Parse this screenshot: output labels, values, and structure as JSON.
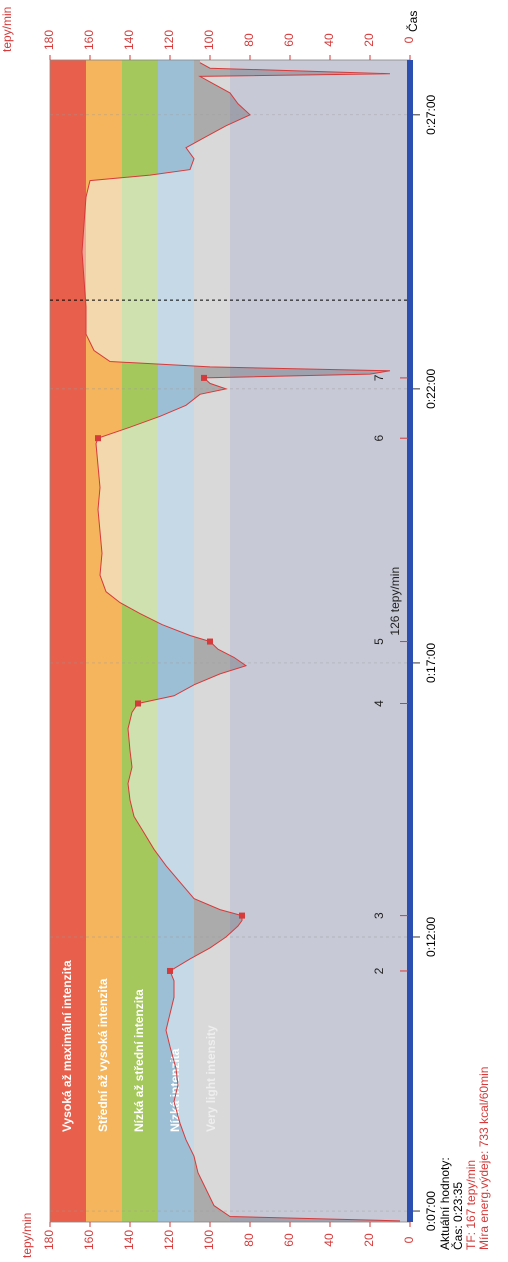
{
  "chart_data": {
    "type": "area",
    "y_label": "tepy/min",
    "x_label": "Čas",
    "xlim": [
      6.8,
      28.0
    ],
    "ylim": [
      0,
      180
    ],
    "xticks": [
      {
        "value": 7,
        "label": "0:07:00"
      },
      {
        "value": 12,
        "label": "0:12:00"
      },
      {
        "value": 17,
        "label": "0:17:00"
      },
      {
        "value": 22,
        "label": "0:22:00"
      },
      {
        "value": 27,
        "label": "0:27:00"
      }
    ],
    "yticks": [
      0,
      20,
      40,
      60,
      80,
      100,
      120,
      140,
      160,
      180
    ],
    "grid": true,
    "zones": [
      {
        "label": "Vysoká až maximální intenzita",
        "range": [
          162,
          180
        ],
        "color": "#e8604c",
        "pale_color": "#f0a898"
      },
      {
        "label": "Střední až vysoká intenzita",
        "range": [
          144,
          162
        ],
        "color": "#f4b55c",
        "pale_color": "#f3d7ad"
      },
      {
        "label": "Nízká až střední intenzita",
        "range": [
          126,
          144
        ],
        "color": "#a5c85c",
        "pale_color": "#d0e1b0"
      },
      {
        "label": "Nízká intenzita",
        "range": [
          108,
          126
        ],
        "color": "#9dbfd5",
        "pale_color": "#c6d9e6"
      },
      {
        "label": "Very light intensity",
        "range": [
          90,
          108
        ],
        "color": "#ababab",
        "pale_color": "#d9d9d9"
      }
    ],
    "base_color": "#9fa1ad",
    "base_pale_color": "#c7c9d6",
    "series": [
      {
        "color": "#d63a3a",
        "x": [
          6.82,
          6.9,
          7.1,
          7.4,
          7.7,
          8.0,
          8.3,
          8.6,
          9.0,
          9.3,
          9.6,
          10.0,
          10.3,
          10.6,
          10.9,
          11.2,
          11.38,
          11.6,
          11.8,
          12.0,
          12.2,
          12.3,
          12.39,
          12.5,
          12.7,
          13.0,
          13.3,
          13.6,
          13.9,
          14.2,
          14.5,
          14.8,
          15.1,
          15.4,
          15.8,
          16.1,
          16.26,
          16.4,
          16.6,
          16.8,
          16.95,
          17.1,
          17.25,
          17.39,
          17.5,
          17.7,
          17.9,
          18.1,
          18.3,
          18.6,
          19.0,
          19.4,
          19.8,
          20.2,
          20.6,
          21.0,
          21.1,
          21.3,
          21.5,
          21.7,
          21.9,
          22.0,
          22.1,
          22.2,
          22.27,
          22.33,
          22.4,
          22.5,
          22.7,
          23.0,
          23.5,
          24.0,
          24.5,
          25.0,
          25.5,
          25.8,
          25.9,
          26.0,
          26.2,
          26.4,
          26.6,
          26.8,
          27.0,
          27.2,
          27.4,
          27.6,
          27.7,
          27.75,
          27.85,
          27.95
        ],
        "values": [
          5,
          90,
          98,
          102,
          106,
          108,
          112,
          115,
          118,
          116,
          117,
          120,
          122,
          120,
          118,
          118,
          120,
          110,
          100,
          92,
          86,
          84,
          84,
          95,
          108,
          115,
          122,
          128,
          133,
          138,
          140,
          141,
          139,
          140,
          141,
          139,
          136,
          118,
          108,
          95,
          82,
          88,
          96,
          100,
          110,
          124,
          135,
          145,
          152,
          155,
          154,
          155,
          156,
          155,
          156,
          157,
          156,
          140,
          125,
          112,
          105,
          92,
          100,
          103,
          20,
          10,
          100,
          150,
          158,
          162,
          162,
          163,
          164,
          163,
          162,
          160,
          130,
          110,
          108,
          112,
          102,
          92,
          80,
          86,
          90,
          100,
          105,
          10,
          100,
          105
        ]
      }
    ],
    "laps": {
      "color": "#d63a3a",
      "labels": [
        "2",
        "3",
        "4",
        "5",
        "6",
        "7"
      ],
      "x": [
        11.38,
        12.39,
        16.26,
        17.39,
        21.1,
        22.2
      ],
      "values": [
        120,
        84,
        136,
        100,
        156,
        103
      ]
    },
    "cursor_x": 23.62,
    "annotation": "126 tepy/min",
    "info": {
      "title": "Aktuální hodnoty:",
      "time": "Čas: 0:23:35",
      "hr": "TF: 167 tepy/min",
      "energy": "Míra energ.výdeje: 733 kcal/60min"
    }
  }
}
